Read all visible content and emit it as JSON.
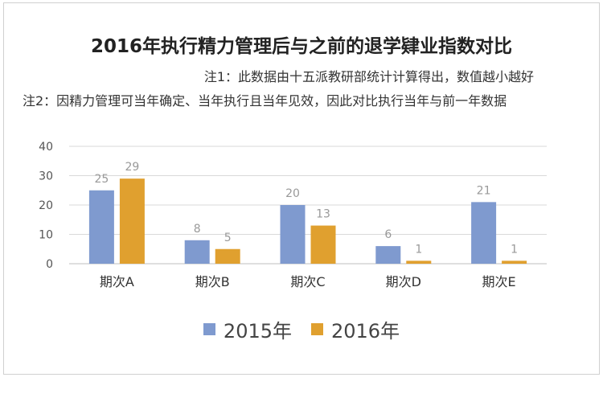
{
  "chart_data": {
    "type": "bar",
    "title": "2016年执行精力管理后与之前的退学肄业指数对比",
    "notes": [
      "注1：此数据由十五派教研部统计计算得出，数值越小越好",
      "注2：因精力管理可当年确定、当年执行且当年见效，因此对比执行当年与前一年数据"
    ],
    "categories": [
      "期次A",
      "期次B",
      "期次C",
      "期次D",
      "期次E"
    ],
    "series": [
      {
        "name": "2015年",
        "values": [
          25,
          8,
          20,
          6,
          21
        ],
        "color": "#7f9acf"
      },
      {
        "name": "2016年",
        "values": [
          29,
          5,
          13,
          1,
          1
        ],
        "color": "#e0a02f"
      }
    ],
    "ylim": [
      0,
      40
    ],
    "yticks": [
      0,
      10,
      20,
      30,
      40
    ],
    "grid": true,
    "legend_position": "bottom"
  }
}
